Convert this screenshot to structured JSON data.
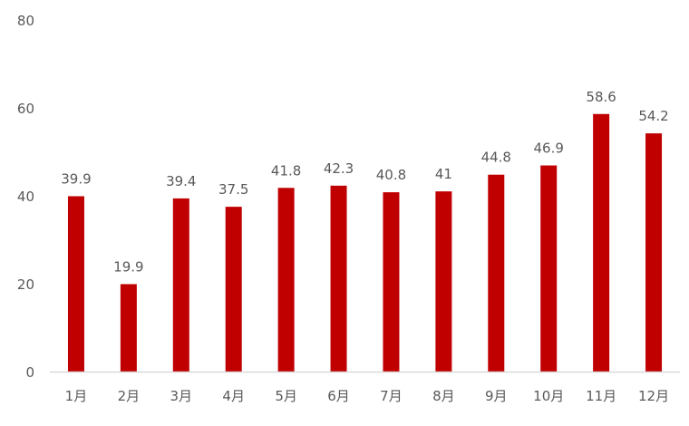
{
  "chart_data": {
    "type": "bar",
    "categories": [
      "1月",
      "2月",
      "3月",
      "4月",
      "5月",
      "6月",
      "7月",
      "8月",
      "9月",
      "10月",
      "11月",
      "12月"
    ],
    "values": [
      39.9,
      19.9,
      39.4,
      37.5,
      41.8,
      42.3,
      40.8,
      41,
      44.8,
      46.9,
      58.6,
      54.2
    ],
    "data_labels": [
      "39.9",
      "19.9",
      "39.4",
      "37.5",
      "41.8",
      "42.3",
      "40.8",
      "41",
      "44.8",
      "46.9",
      "58.6",
      "54.2"
    ],
    "y_ticks": [
      0,
      20,
      40,
      60,
      80
    ],
    "ylim": [
      0,
      80
    ],
    "grid": false,
    "legend": "none",
    "title": "",
    "xlabel": "",
    "ylabel": "",
    "colors": {
      "bar": "#c00000",
      "axis": "#d9d9d9",
      "text": "#595959"
    }
  }
}
